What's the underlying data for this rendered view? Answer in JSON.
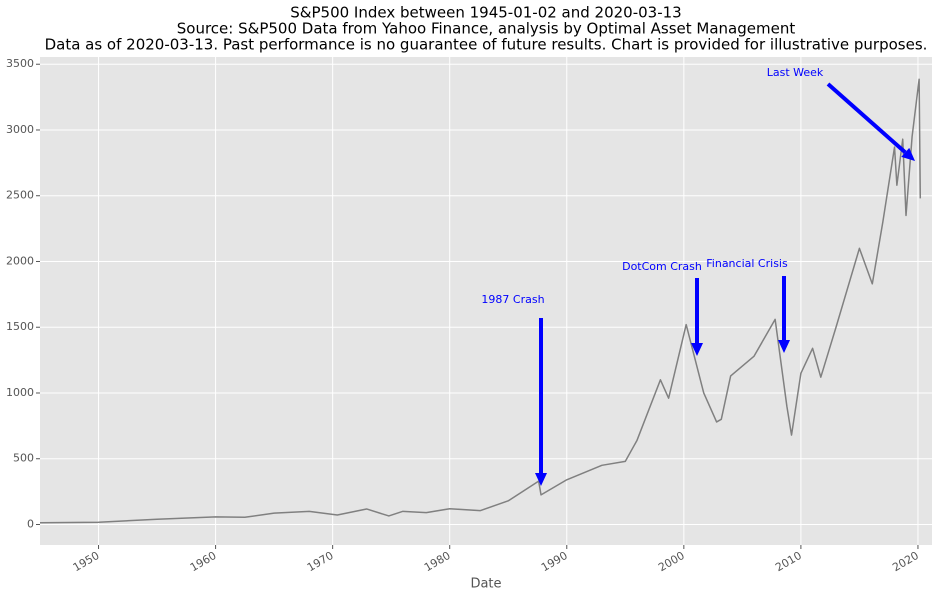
{
  "chart_data": {
    "type": "line",
    "title": [
      "S&P500 Index between 1945-01-02 and 2020-03-13",
      "Source: S&P500 Data from Yahoo Finance, analysis by Optimal Asset Management",
      "Data as of 2020-03-13. Past performance is no guarantee of future results. Chart is provided for illustrative purposes."
    ],
    "x_label": "Date",
    "x": [
      1945,
      1950,
      1955,
      1960,
      1962.5,
      1965,
      1968,
      1970.4,
      1972.9,
      1974.8,
      1976,
      1978,
      1980,
      1982.6,
      1985,
      1987.6,
      1987.8,
      1990,
      1993,
      1995,
      1996,
      1998,
      1998.7,
      2000.2,
      2001.7,
      2002.8,
      2003.2,
      2004,
      2006,
      2007.8,
      2008.8,
      2009.2,
      2010,
      2011,
      2011.7,
      2013,
      2015,
      2016.1,
      2017,
      2018,
      2018.2,
      2018.7,
      2018.98,
      2019.5,
      2020.1,
      2020.2
    ],
    "values": [
      13,
      17,
      40,
      58,
      55,
      86,
      100,
      72,
      118,
      65,
      100,
      90,
      120,
      105,
      180,
      330,
      225,
      340,
      450,
      480,
      640,
      1100,
      960,
      1520,
      1000,
      780,
      800,
      1130,
      1280,
      1560,
      900,
      680,
      1150,
      1340,
      1120,
      1500,
      2100,
      1830,
      2300,
      2870,
      2580,
      2930,
      2350,
      2950,
      3386,
      2480
    ],
    "color": "#808080",
    "xlim": [
      1945,
      2021.2
    ],
    "xticks": [
      1950,
      1960,
      1970,
      1980,
      1990,
      2000,
      2010,
      2020
    ],
    "ylim": [
      -156,
      3555
    ],
    "yticks": [
      0,
      500,
      1000,
      1500,
      2000,
      2500,
      3000,
      3500
    ],
    "grid": true,
    "annotations": [
      "1987 Crash",
      "DotCom Crash",
      "Financial Crisis",
      "Last Week"
    ],
    "annotation_color": "#0000ff"
  }
}
